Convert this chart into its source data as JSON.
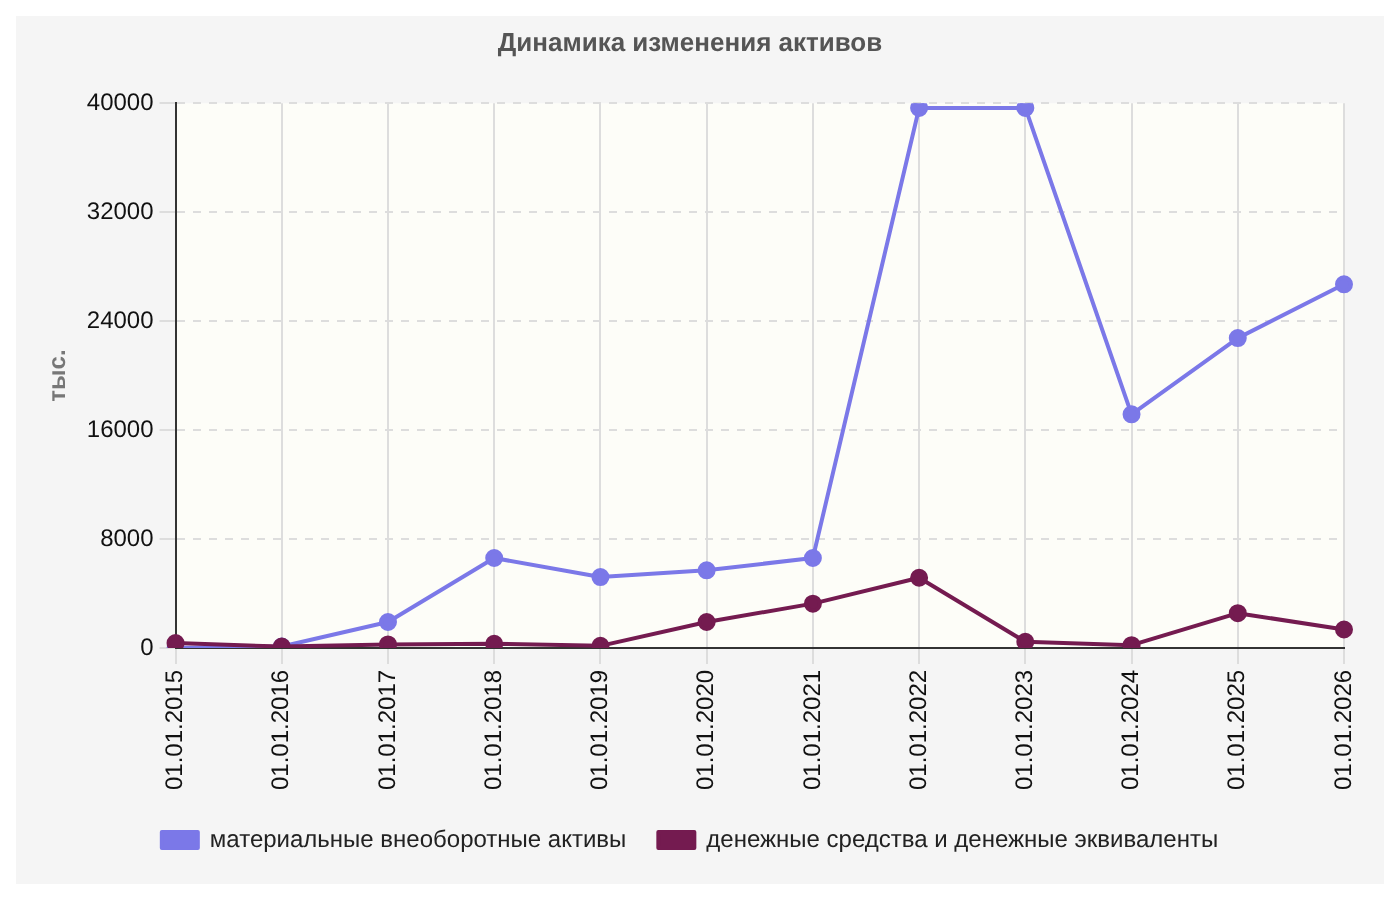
{
  "chart_data": {
    "type": "line",
    "title": "Динамика изменения активов",
    "ylabel": "тыс.",
    "categories": [
      "01.01.2015",
      "01.01.2016",
      "01.01.2017",
      "01.01.2018",
      "01.01.2019",
      "01.01.2020",
      "01.01.2021",
      "01.01.2022",
      "01.01.2023",
      "01.01.2024",
      "01.01.2025",
      "01.01.2026"
    ],
    "series": [
      {
        "name": "материальные внеоборотные активы",
        "color": "#7b78e8",
        "values": [
          0,
          100,
          1900,
          6600,
          5200,
          5700,
          6600,
          39650,
          39650,
          17150,
          22750,
          26700
        ]
      },
      {
        "name": "денежные средства и денежные эквиваленты",
        "color": "#741b50",
        "values": [
          350,
          100,
          250,
          300,
          150,
          1900,
          3250,
          5150,
          450,
          200,
          2550,
          1350
        ]
      }
    ],
    "ylim": [
      0,
      40000
    ],
    "yticks": [
      0,
      8000,
      16000,
      24000,
      32000,
      40000
    ],
    "grid": true,
    "legend": "bottom",
    "marker": "circle",
    "line_style": "solid"
  }
}
